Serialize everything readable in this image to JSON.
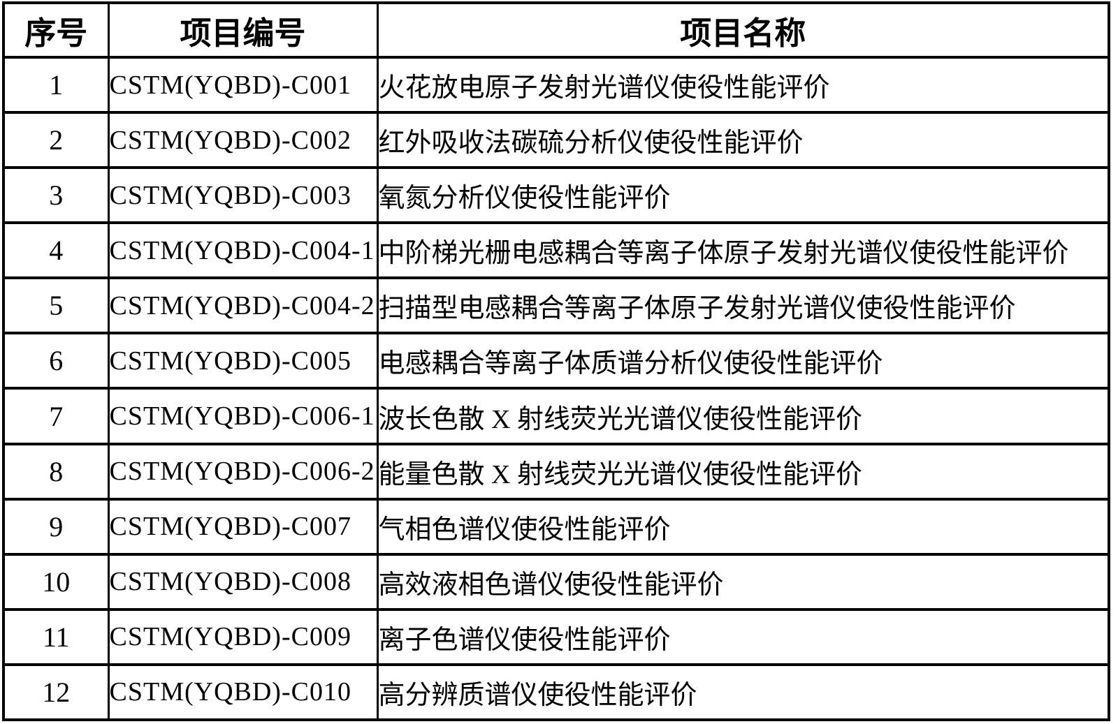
{
  "table": {
    "headers": [
      {
        "key": "index",
        "label": "序号"
      },
      {
        "key": "code",
        "label": "项目编号"
      },
      {
        "key": "name",
        "label": "项目名称"
      }
    ],
    "rows": [
      {
        "index": "1",
        "code": "CSTM(YQBD)-C001",
        "name": "火花放电原子发射光谱仪使役性能评价"
      },
      {
        "index": "2",
        "code": "CSTM(YQBD)-C002",
        "name": "红外吸收法碳硫分析仪使役性能评价"
      },
      {
        "index": "3",
        "code": "CSTM(YQBD)-C003",
        "name": "氧氮分析仪使役性能评价"
      },
      {
        "index": "4",
        "code": "CSTM(YQBD)-C004-1",
        "name": "中阶梯光栅电感耦合等离子体原子发射光谱仪使役性能评价"
      },
      {
        "index": "5",
        "code": "CSTM(YQBD)-C004-2",
        "name": "扫描型电感耦合等离子体原子发射光谱仪使役性能评价"
      },
      {
        "index": "6",
        "code": "CSTM(YQBD)-C005",
        "name": "电感耦合等离子体质谱分析仪使役性能评价"
      },
      {
        "index": "7",
        "code": "CSTM(YQBD)-C006-1",
        "name": "波长色散 X 射线荧光光谱仪使役性能评价"
      },
      {
        "index": "8",
        "code": "CSTM(YQBD)-C006-2",
        "name": "能量色散 X 射线荧光光谱仪使役性能评价"
      },
      {
        "index": "9",
        "code": "CSTM(YQBD)-C007",
        "name": "气相色谱仪使役性能评价"
      },
      {
        "index": "10",
        "code": "CSTM(YQBD)-C008",
        "name": "高效液相色谱仪使役性能评价"
      },
      {
        "index": "11",
        "code": "CSTM(YQBD)-C009",
        "name": "离子色谱仪使役性能评价"
      },
      {
        "index": "12",
        "code": "CSTM(YQBD)-C010",
        "name": "高分辨质谱仪使役性能评价"
      }
    ]
  },
  "colors": {
    "border": "#000000",
    "text": "#000000",
    "background": "#ffffff"
  }
}
